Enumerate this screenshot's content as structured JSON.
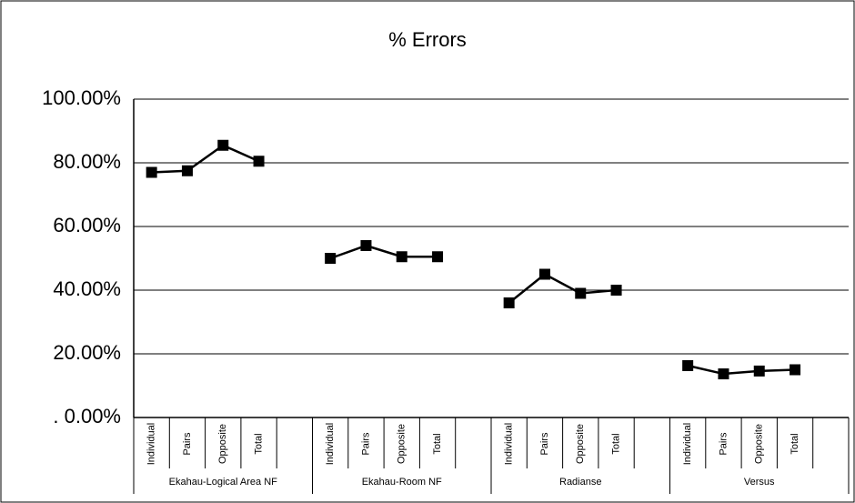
{
  "chart_data": {
    "type": "line",
    "title": "% Errors",
    "categories": [
      "Individual",
      "Pairs",
      "Opposite",
      "Total",
      null,
      "Individual",
      "Pairs",
      "Opposite",
      "Total",
      null,
      "Individual",
      "Pairs",
      "Opposite",
      "Total",
      null,
      "Individual",
      "Pairs",
      "Opposite",
      "Total",
      null
    ],
    "groups": [
      "Ekahau-Logical Area NF",
      "Ekahau-Room NF",
      "Radianse",
      "Versus"
    ],
    "values": [
      77,
      77.5,
      85.5,
      80.5,
      null,
      50,
      54,
      50.5,
      50.5,
      null,
      36,
      45,
      39,
      40,
      null,
      16.3,
      13.7,
      14.6,
      15,
      null
    ],
    "color": "#000000",
    "ylim": [
      0,
      100
    ],
    "yticks": [
      {
        "value": 0,
        "label": ". 0.00%"
      },
      {
        "value": 20,
        "label": "20.00%"
      },
      {
        "value": 40,
        "label": "40.00%"
      },
      {
        "value": 60,
        "label": "60.00%"
      },
      {
        "value": 80,
        "label": "80.00%"
      },
      {
        "value": 100,
        "label": "100.00%"
      }
    ],
    "grid": true
  }
}
